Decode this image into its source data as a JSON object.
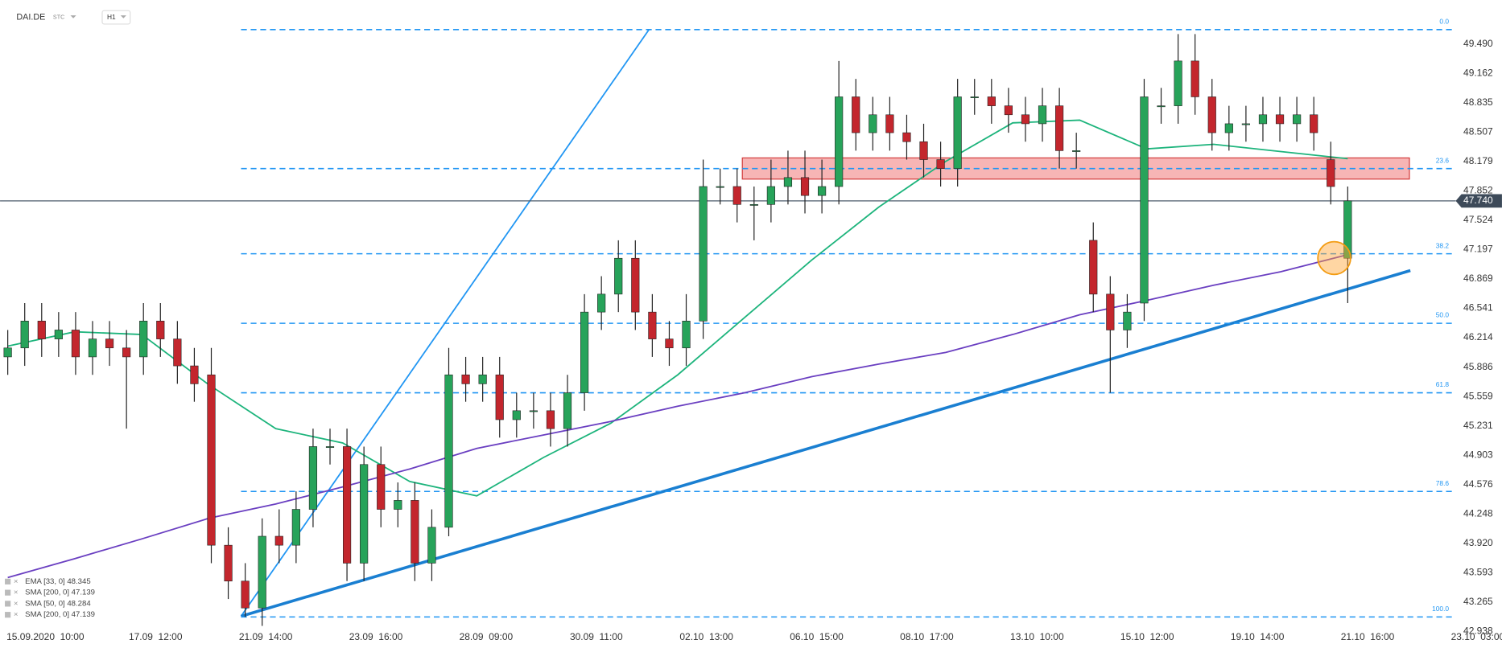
{
  "chart_data": {
    "type": "candlestick",
    "symbol": "DAI.DE",
    "source": "STC",
    "interval": "H1",
    "open": [
      46.0,
      46.1,
      46.4,
      46.2,
      46.3,
      46.0,
      46.2,
      46.1,
      46.0,
      46.4,
      46.2,
      45.9,
      45.8,
      43.9,
      43.5,
      43.2,
      44.0,
      43.9,
      44.3,
      45.0,
      45.0,
      43.7,
      44.8,
      44.3,
      44.4,
      43.7,
      44.1,
      45.8,
      45.7,
      45.8,
      45.3,
      45.4,
      45.4,
      45.2,
      45.6,
      46.5,
      46.7,
      47.1,
      46.5,
      46.2,
      46.1,
      46.4,
      47.9,
      47.9,
      47.7,
      47.7,
      47.9,
      48.0,
      47.8,
      47.9,
      48.9,
      48.5,
      48.7,
      48.5,
      48.4,
      48.2,
      48.1,
      48.9,
      48.9,
      48.8,
      48.7,
      48.6,
      48.8,
      48.3,
      47.3,
      46.7,
      46.3,
      46.6,
      48.8,
      48.8,
      49.3,
      48.9,
      48.5,
      48.6,
      48.6,
      48.7,
      48.6,
      48.7,
      48.2,
      47.1
    ],
    "high": [
      46.3,
      46.6,
      46.6,
      46.5,
      46.5,
      46.4,
      46.4,
      46.3,
      46.6,
      46.6,
      46.4,
      46.1,
      46.1,
      44.1,
      43.7,
      44.2,
      44.3,
      44.5,
      45.2,
      45.2,
      45.2,
      45.0,
      45.0,
      44.6,
      44.6,
      44.3,
      46.1,
      46.0,
      46.0,
      46.0,
      45.6,
      45.6,
      45.6,
      45.8,
      46.7,
      46.9,
      47.3,
      47.3,
      46.7,
      46.4,
      46.7,
      48.2,
      48.1,
      48.1,
      47.9,
      48.2,
      48.3,
      48.3,
      48.2,
      49.3,
      49.1,
      48.9,
      48.9,
      48.7,
      48.6,
      48.4,
      49.1,
      49.1,
      49.1,
      49.0,
      48.9,
      49.0,
      49.0,
      48.5,
      47.5,
      46.9,
      46.7,
      49.1,
      49.0,
      49.6,
      49.6,
      49.1,
      48.8,
      48.8,
      48.9,
      48.9,
      48.9,
      48.9,
      48.4,
      47.9
    ],
    "low": [
      45.8,
      45.9,
      46.0,
      46.0,
      45.8,
      45.8,
      45.9,
      45.2,
      45.8,
      46.0,
      45.7,
      45.5,
      43.7,
      43.3,
      43.1,
      43.0,
      43.7,
      43.7,
      44.1,
      44.8,
      43.5,
      43.5,
      44.1,
      44.1,
      43.5,
      43.5,
      44.0,
      45.5,
      45.5,
      45.1,
      45.1,
      45.2,
      45.0,
      45.0,
      45.4,
      46.3,
      46.5,
      46.3,
      46.0,
      45.9,
      45.9,
      46.2,
      47.7,
      47.5,
      47.3,
      47.5,
      47.7,
      47.6,
      47.6,
      47.7,
      48.3,
      48.3,
      48.3,
      48.2,
      48.0,
      47.9,
      47.9,
      48.7,
      48.6,
      48.5,
      48.4,
      48.4,
      48.1,
      48.1,
      46.5,
      45.6,
      46.1,
      46.4,
      48.6,
      48.6,
      48.7,
      48.3,
      48.3,
      48.4,
      48.4,
      48.4,
      48.4,
      48.3,
      47.7,
      46.6
    ],
    "close": [
      46.1,
      46.4,
      46.2,
      46.3,
      46.0,
      46.2,
      46.1,
      46.0,
      46.4,
      46.2,
      45.9,
      45.7,
      43.9,
      43.5,
      43.2,
      44.0,
      43.9,
      44.3,
      45.0,
      45.0,
      43.7,
      44.8,
      44.3,
      44.4,
      43.7,
      44.1,
      45.8,
      45.7,
      45.8,
      45.3,
      45.4,
      45.4,
      45.2,
      45.6,
      46.5,
      46.7,
      47.1,
      46.5,
      46.2,
      46.1,
      46.4,
      47.9,
      47.9,
      47.7,
      47.7,
      47.9,
      48.0,
      47.8,
      47.9,
      48.9,
      48.5,
      48.7,
      48.5,
      48.4,
      48.2,
      48.1,
      48.9,
      48.9,
      48.8,
      48.7,
      48.6,
      48.8,
      48.3,
      48.3,
      46.7,
      46.3,
      46.5,
      48.9,
      48.8,
      49.3,
      48.9,
      48.5,
      48.6,
      48.6,
      48.7,
      48.6,
      48.7,
      48.5,
      47.9,
      47.74
    ],
    "up_color": "#27a35a",
    "down_color": "#c3262d",
    "series": [
      {
        "color": "#1db47c",
        "values": [
          46.12,
          46.28,
          46.25,
          45.69,
          45.2,
          45.04,
          44.61,
          44.45,
          44.88,
          45.26,
          45.8,
          46.44,
          47.08,
          47.67,
          48.18,
          48.61,
          48.64,
          48.32,
          48.37,
          48.29,
          48.21
        ]
      },
      {
        "color": "#6a3fc1",
        "values": [
          43.54,
          43.75,
          43.97,
          44.2,
          44.36,
          44.55,
          44.75,
          44.98,
          45.13,
          45.28,
          45.45,
          45.6,
          45.78,
          45.92,
          46.05,
          46.25,
          46.47,
          46.63,
          46.8,
          46.95,
          47.14
        ]
      }
    ],
    "legend": [
      "EMA [33, 0] 48.345",
      "SMA [200, 0] 47.139",
      "SMA [50, 0] 48.284",
      "SMA [200, 0] 47.139"
    ],
    "fibonacci": [
      {
        "label": "0.0",
        "value": 49.65
      },
      {
        "label": "23.6",
        "value": 48.1
      },
      {
        "label": "38.2",
        "value": 47.15
      },
      {
        "label": "50.0",
        "value": 46.375
      },
      {
        "label": "61.8",
        "value": 45.6
      },
      {
        "label": "78.6",
        "value": 44.5
      },
      {
        "label": "100.0",
        "value": 43.1
      }
    ],
    "fib_color": "#2196f3",
    "last_price": {
      "value": 47.74,
      "label": "47.740"
    },
    "ylim": [
      42.99,
      49.98
    ],
    "yticks": [
      {
        "value": 49.49,
        "label": "49.490"
      },
      49.162,
      48.835,
      48.507,
      48.179,
      47.852,
      47.524,
      47.197,
      46.869,
      46.541,
      46.214,
      45.886,
      45.559,
      45.231,
      44.903,
      44.576,
      44.248,
      {
        "value": 43.92,
        "label": "43.920"
      },
      43.593,
      43.265,
      42.938
    ],
    "x_labels": [
      "15.09.2020  10:00",
      "17.09  12:00",
      "21.09  14:00",
      "23.09  16:00",
      "28.09  09:00",
      "30.09  11:00",
      "02.10  13:00",
      "06.10  15:00",
      "08.10  17:00",
      "13.10  10:00",
      "15.10  12:00",
      "19.10  14:00",
      "21.10  16:00",
      "23.10  03:00"
    ]
  }
}
